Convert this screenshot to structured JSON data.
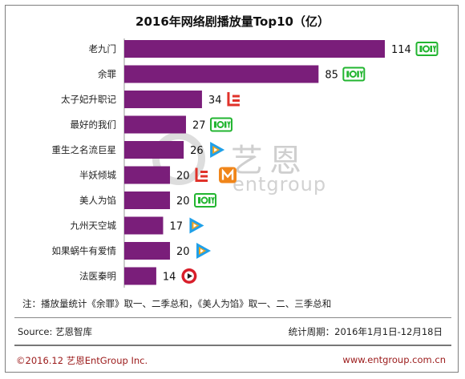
{
  "chart_data": {
    "type": "bar",
    "orientation": "horizontal",
    "title": "2016年网络剧播放量Top10（亿）",
    "categories": [
      "老九门",
      "余罪",
      "太子妃升职记",
      "最好的我们",
      "重生之名流巨星",
      "半妖倾城",
      "美人为馅",
      "九州天空城",
      "如果蜗牛有爱情",
      "法医秦明"
    ],
    "values": [
      114,
      85,
      34,
      27,
      26,
      20,
      20,
      17,
      20,
      14
    ],
    "xlim": [
      0,
      114
    ],
    "grid": false,
    "legend": "none",
    "bar_color": "#7a1e7a",
    "platform_icons": [
      [
        "iqiyi-logo-icon"
      ],
      [
        "iqiyi-logo-icon"
      ],
      [
        "letv-logo-icon"
      ],
      [
        "iqiyi-logo-icon"
      ],
      [
        "tencent-video-logo-icon"
      ],
      [
        "letv-logo-icon",
        "mango-tv-logo-icon"
      ],
      [
        "iqiyi-logo-icon"
      ],
      [
        "tencent-video-logo-icon"
      ],
      [
        "tencent-video-logo-icon"
      ],
      [
        "sohu-video-logo-icon"
      ]
    ]
  },
  "watermark": {
    "glyphs": "艺恩",
    "text": "entgroup"
  },
  "footer": {
    "note": "注：播放量统计《余罪》取一、二季总和，《美人为馅》取一、二、三季总和",
    "source": "Source: 艺恩智库",
    "period": "统计周期：2016年1月1日-12月18日",
    "copyright": "©2016.12  艺恩EntGroup Inc.",
    "website": "www.entgroup.com.cn"
  },
  "colors": {
    "bar": "#7a1e7a",
    "iqiyi": "#22b530",
    "letv": "#e0322a",
    "tencent": "#20a0e8",
    "mango": "#f08519",
    "sohu": "#d81e2a",
    "footer_text": "#9b1a1a"
  }
}
